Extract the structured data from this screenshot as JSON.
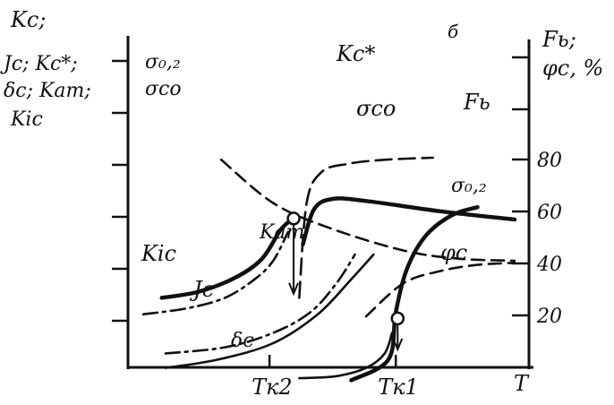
{
  "chart_data": {
    "type": "line",
    "panel_mark": "б",
    "x_axis": {
      "label": "T",
      "tick_labels": [
        {
          "text": "Tк2",
          "x": 0.34
        },
        {
          "text": "Tк1",
          "x": 0.68
        }
      ],
      "xlim": [
        0,
        1
      ]
    },
    "left_axis": {
      "label_lines": [
        "Kс;",
        "Jс; Kс*;",
        "δс; Kат;",
        "Kіс"
      ],
      "sub_label_lines": [
        "σ₀,₂",
        "σсо"
      ],
      "tick_count": 6,
      "scale": "relative, unnumbered"
    },
    "right_axis": {
      "label_lines": [
        "Fь;",
        "φс, %"
      ],
      "tick_labels": [
        "20",
        "40",
        "60",
        "80"
      ],
      "ylim": [
        0,
        120
      ]
    },
    "series": [
      {
        "name": "Kс*",
        "style": "long-dash-then-solid",
        "weight": "thin",
        "points": [
          [
            0.42,
            0.12
          ],
          [
            0.44,
            0.58
          ],
          [
            0.48,
            0.73
          ],
          [
            0.55,
            0.77
          ],
          [
            0.65,
            0.79
          ],
          [
            0.78,
            0.8
          ]
        ]
      },
      {
        "name": "σсо",
        "style": "solid",
        "weight": "heavy",
        "points": [
          [
            0.43,
            0.38
          ],
          [
            0.46,
            0.55
          ],
          [
            0.51,
            0.6
          ],
          [
            0.6,
            0.59
          ],
          [
            0.8,
            0.54
          ],
          [
            1.0,
            0.5
          ]
        ]
      },
      {
        "name": "σ₀,₂",
        "style": "dash",
        "weight": "thin",
        "points": [
          [
            0.21,
            0.79
          ],
          [
            0.35,
            0.58
          ],
          [
            0.5,
            0.46
          ],
          [
            0.7,
            0.35
          ],
          [
            0.85,
            0.31
          ],
          [
            1.0,
            0.3
          ]
        ]
      },
      {
        "name": "Kіс",
        "style": "solid",
        "weight": "heavy",
        "points": [
          [
            0.05,
            0.12
          ],
          [
            0.15,
            0.15
          ],
          [
            0.25,
            0.22
          ],
          [
            0.32,
            0.31
          ],
          [
            0.37,
            0.45
          ],
          [
            0.4,
            0.5
          ]
        ]
      },
      {
        "name": "Kат",
        "style": "dash-dot",
        "weight": "thin",
        "points": [
          [
            0.0,
            0.04
          ],
          [
            0.12,
            0.07
          ],
          [
            0.22,
            0.12
          ],
          [
            0.3,
            0.21
          ],
          [
            0.35,
            0.3
          ],
          [
            0.39,
            0.44
          ]
        ]
      },
      {
        "name": "Jс",
        "style": "dash-dot",
        "weight": "thin",
        "points": [
          [
            0.06,
            -0.15
          ],
          [
            0.22,
            -0.12
          ],
          [
            0.35,
            -0.05
          ],
          [
            0.45,
            0.05
          ],
          [
            0.52,
            0.19
          ],
          [
            0.57,
            0.33
          ]
        ]
      },
      {
        "name": "δс",
        "style": "solid",
        "weight": "thin",
        "points": [
          [
            0.06,
            -0.22
          ],
          [
            0.2,
            -0.18
          ],
          [
            0.35,
            -0.1
          ],
          [
            0.47,
            0.04
          ],
          [
            0.56,
            0.21
          ],
          [
            0.62,
            0.33
          ]
        ]
      },
      {
        "name": "φс",
        "style": "dash",
        "weight": "thin",
        "points": [
          [
            0.6,
            0.03
          ],
          [
            0.7,
            0.19
          ],
          [
            0.8,
            0.25
          ],
          [
            0.9,
            0.28
          ],
          [
            1.0,
            0.29
          ]
        ]
      },
      {
        "name": "Fь",
        "style": "solid",
        "weight": "heavy",
        "points": [
          [
            0.56,
            -0.28
          ],
          [
            0.66,
            -0.18
          ],
          [
            0.68,
            0.05
          ],
          [
            0.71,
            0.26
          ],
          [
            0.76,
            0.42
          ],
          [
            0.83,
            0.52
          ],
          [
            0.9,
            0.56
          ]
        ]
      },
      {
        "name": "",
        "style": "solid",
        "weight": "thin",
        "points": [
          [
            0.42,
            -0.27
          ],
          [
            0.52,
            -0.26
          ],
          [
            0.6,
            -0.22
          ],
          [
            0.65,
            -0.15
          ],
          [
            0.67,
            -0.05
          ]
        ]
      }
    ],
    "transition_markers": [
      {
        "at": "Tк2",
        "x": 0.405,
        "y": 0.505,
        "label": "Kат",
        "arrow_to_y": 0.14
      },
      {
        "at": "Tк1",
        "x": 0.685,
        "y": 0.02,
        "label": "",
        "arrow_to_y": -0.13
      }
    ]
  }
}
